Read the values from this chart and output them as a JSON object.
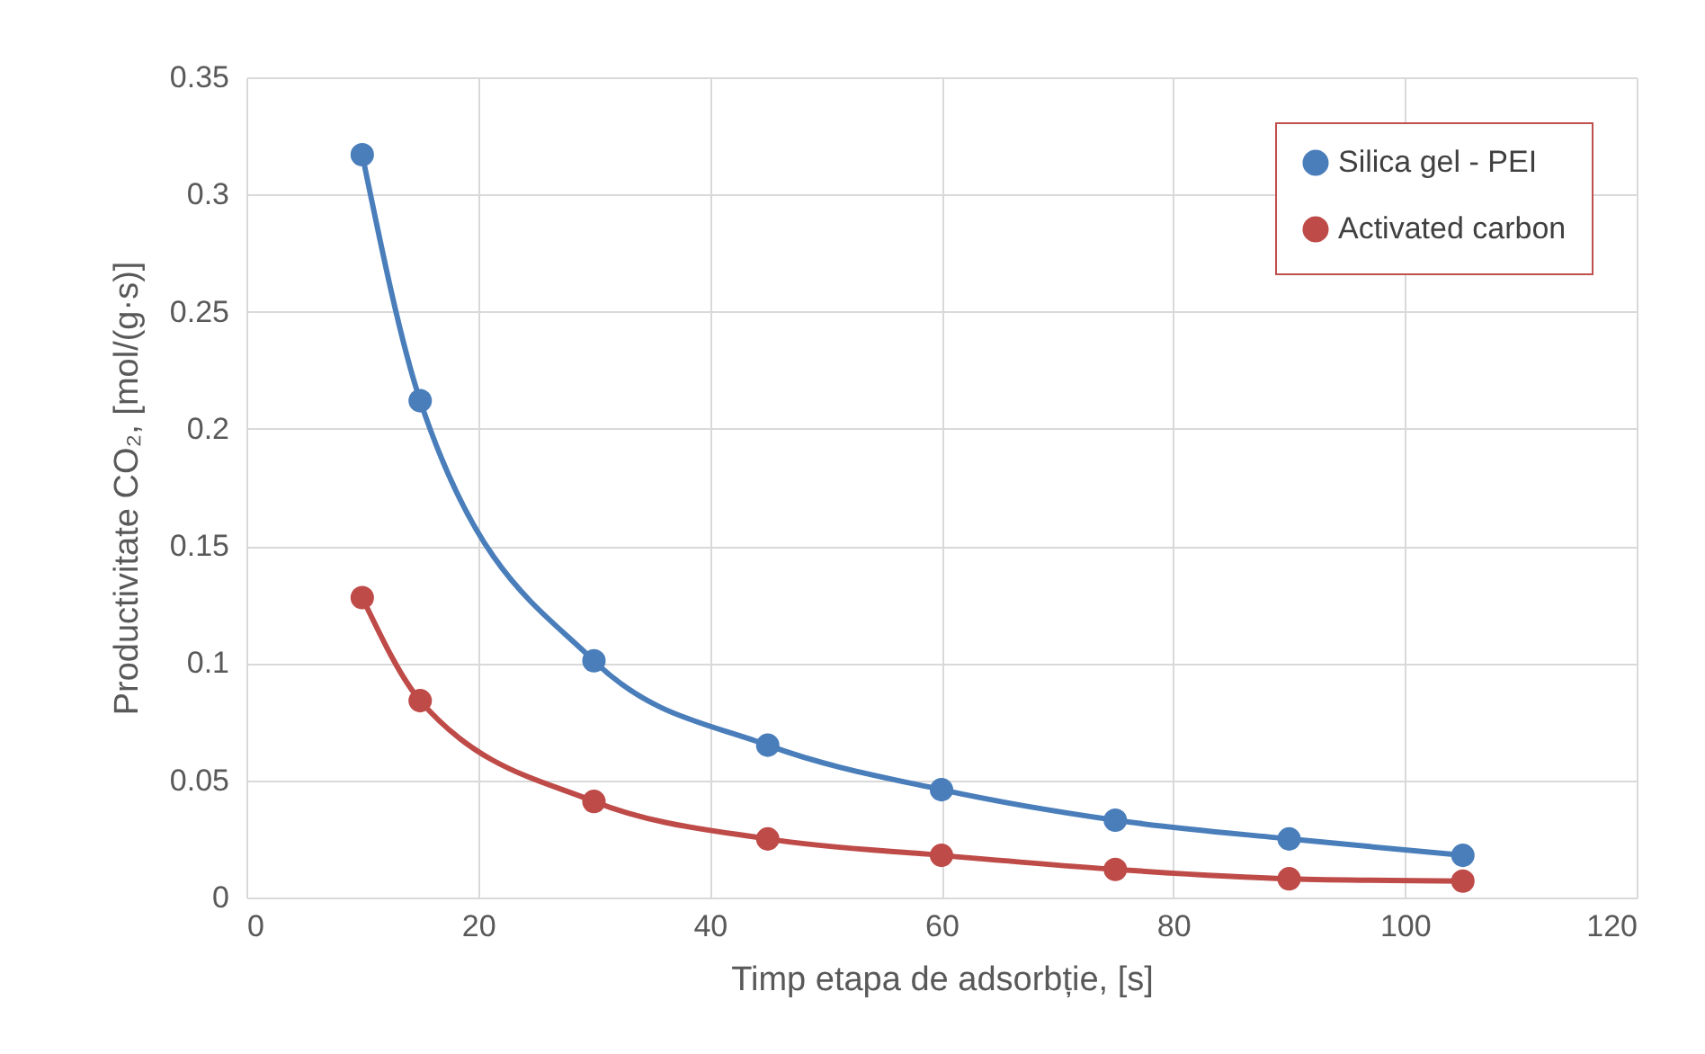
{
  "chart_data": {
    "type": "line",
    "xlabel": "Timp etapa de adsorbție, [s]",
    "ylabel": "Productivitate CO₂, [mol/(g·s)]",
    "x": [
      10,
      15,
      30,
      45,
      60,
      75,
      90,
      105
    ],
    "series": [
      {
        "name": "Silica gel - PEI",
        "color": "#4a7ebb",
        "values": [
          0.317,
          0.212,
          0.101,
          0.065,
          0.046,
          0.033,
          0.025,
          0.018
        ]
      },
      {
        "name": "Activated carbon",
        "color": "#be4b48",
        "values": [
          0.128,
          0.084,
          0.041,
          0.025,
          0.018,
          0.012,
          0.008,
          0.007
        ]
      }
    ],
    "xlim": [
      0,
      120
    ],
    "xticks": [
      0,
      20,
      40,
      60,
      80,
      100,
      120
    ],
    "ylim": [
      0,
      0.35
    ],
    "yticks": [
      0,
      0.05,
      0.1,
      0.15,
      0.2,
      0.25,
      0.3,
      0.35
    ],
    "grid": true,
    "legend": "top right",
    "marker": "circle",
    "line_style": "solid"
  }
}
